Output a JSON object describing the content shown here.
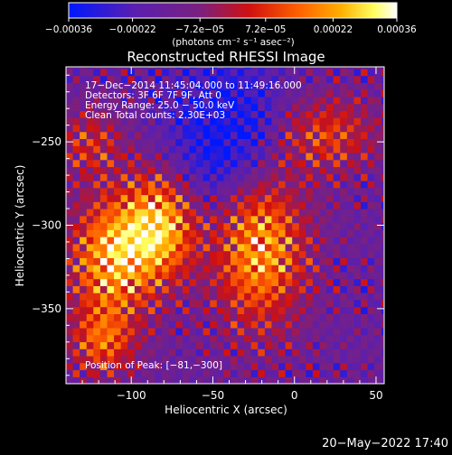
{
  "chart_data": {
    "type": "heatmap",
    "title": "Reconstructed RHESSI Image",
    "xlabel": "Heliocentric X (arcsec)",
    "ylabel": "Heliocentric Y (arcsec)",
    "xlim": [
      -140,
      55
    ],
    "ylim": [
      -395,
      -205
    ],
    "x_ticks": [
      -100,
      -50,
      0,
      50
    ],
    "x_tick_labels": [
      "−100",
      "−50",
      "0",
      "50"
    ],
    "y_ticks": [
      -250,
      -300,
      -350
    ],
    "y_tick_labels": [
      "−250",
      "−300",
      "−350"
    ],
    "colorbar": {
      "min": -0.00036,
      "max": 0.00036,
      "ticks": [
        -0.00036,
        -0.00022,
        -7.2e-05,
        7.2e-05,
        0.00022,
        0.00036
      ],
      "tick_labels": [
        "−0.00036",
        "−0.00022",
        "−7.2e−05",
        "7.2e−05",
        "0.00022",
        "0.00036"
      ],
      "unit_label": "(photons cm⁻² s⁻¹ asec⁻²)",
      "colors": [
        "#0018ff",
        "#5a1fb0",
        "#7a2080",
        "#d01010",
        "#ff6000",
        "#ffb000",
        "#ffff60",
        "#ffffff"
      ]
    },
    "annotations": [
      "17−Dec−2014 11:45:04.000 to 11:49:16.000",
      "Detectors: 3F 6F 7F 9F, Att 0",
      "Energy Range: 25.0 − 50.0 keV",
      "Clean     Total counts: 2.30E+03"
    ],
    "peak_label": "Position of Peak: [−81,−300]",
    "peak": [
      -81,
      -300
    ],
    "sources": [
      {
        "x": -112,
        "y": -320,
        "amp": 0.95,
        "sx": 18,
        "sy": 26
      },
      {
        "x": -82,
        "y": -300,
        "amp": 1.0,
        "sx": 16,
        "sy": 22
      },
      {
        "x": -22,
        "y": -310,
        "amp": 1.0,
        "sx": 20,
        "sy": 34
      },
      {
        "x": -118,
        "y": -370,
        "amp": 0.6,
        "sx": 14,
        "sy": 14
      },
      {
        "x": 20,
        "y": -245,
        "amp": 0.55,
        "sx": 22,
        "sy": 16
      },
      {
        "x": -125,
        "y": -250,
        "amp": 0.45,
        "sx": 14,
        "sy": 14
      }
    ]
  },
  "timestamp": "20−May−2022 17:40"
}
